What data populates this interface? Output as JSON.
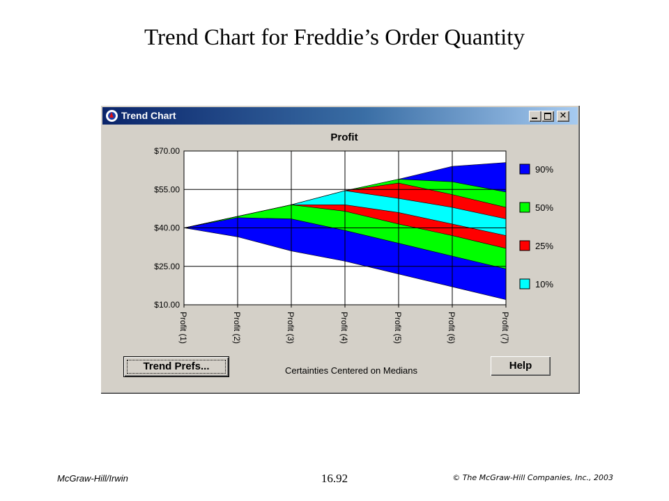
{
  "slide": {
    "title": "Trend Chart for Freddie’s Order Quantity"
  },
  "window": {
    "title": "Trend Chart",
    "minimize": "_",
    "maximize": "□",
    "close": "✕"
  },
  "buttons": {
    "prefs": "Trend Prefs...",
    "help": "Help"
  },
  "footnote": "Certainties Centered on Medians",
  "footer": {
    "left": "McGraw-Hill/Irwin",
    "center": "16.92",
    "right": "© The McGraw-Hill Companies, Inc., 2003"
  },
  "colors": {
    "p90": "#0000ff",
    "p50": "#00ff00",
    "p25": "#ff0000",
    "p10": "#00ffff",
    "titlebar": "#0a246a",
    "window": "#d4d0c8"
  },
  "chart_data": {
    "type": "area",
    "title": "Profit",
    "x": [
      "Profit (1)",
      "Profit (2)",
      "Profit (3)",
      "Profit (4)",
      "Profit (5)",
      "Profit (6)",
      "Profit (7)"
    ],
    "yticks": [
      "$70.00",
      "$55.00",
      "$40.00",
      "$25.00",
      "$10.00"
    ],
    "ylim": [
      10,
      70
    ],
    "grid": true,
    "legend": "right",
    "bands": [
      {
        "name": "90%",
        "color": "#0000ff",
        "lower": [
          40,
          36.5,
          31,
          27,
          22,
          17,
          12
        ],
        "upper": [
          40,
          44.5,
          49,
          54.5,
          59,
          64,
          65.5
        ]
      },
      {
        "name": "50%",
        "color": "#00ff00",
        "lower": [
          40,
          44,
          43.5,
          39,
          34,
          29,
          24
        ],
        "upper": [
          40,
          44.5,
          49,
          54.5,
          59,
          58,
          54
        ]
      },
      {
        "name": "25%",
        "color": "#ff0000",
        "lower": [
          40,
          44.5,
          49,
          46.5,
          41.5,
          37,
          32
        ],
        "upper": [
          40,
          44.5,
          49,
          54.5,
          57.5,
          53,
          48
        ]
      },
      {
        "name": "10%",
        "color": "#00ffff",
        "lower": [
          40,
          44.5,
          49,
          49,
          46,
          41.5,
          37
        ],
        "upper": [
          40,
          44.5,
          49,
          54.5,
          51.5,
          48,
          43.5
        ]
      }
    ]
  }
}
